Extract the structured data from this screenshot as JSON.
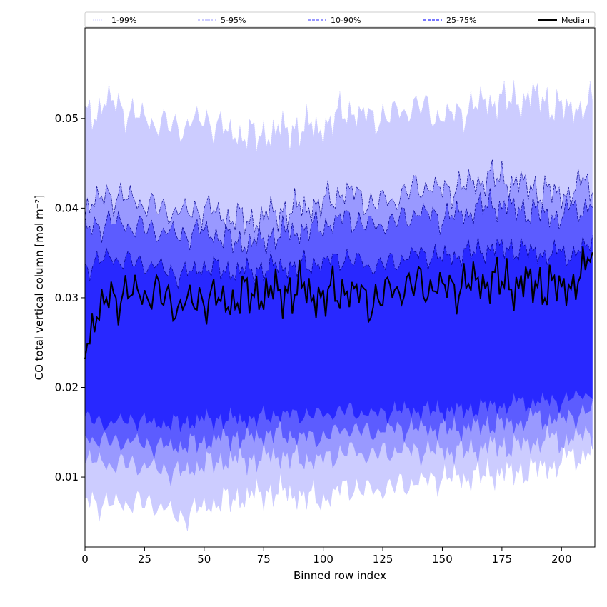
{
  "chart_data": {
    "type": "area",
    "title": "",
    "xlabel": "Binned row index",
    "ylabel": "CO total vertical column [mol m⁻²]",
    "xlim": [
      0,
      214
    ],
    "ylim": [
      0.0022,
      0.0601
    ],
    "x_ticks": [
      0,
      25,
      50,
      75,
      100,
      125,
      150,
      175,
      200
    ],
    "x_tick_labels": [
      "0",
      "25",
      "50",
      "75",
      "100",
      "125",
      "150",
      "175",
      "200"
    ],
    "y_ticks": [
      0.01,
      0.02,
      0.03,
      0.04,
      0.05
    ],
    "y_tick_labels": [
      "0.01",
      "0.02",
      "0.03",
      "0.04",
      "0.05"
    ],
    "grid": false,
    "legend_position": "top",
    "legend": [
      {
        "label": "1-99%",
        "style": "dotted"
      },
      {
        "label": "5-95%",
        "style": "dashdot"
      },
      {
        "label": "10-90%",
        "style": "dashed"
      },
      {
        "label": "25-75%",
        "style": "dashed"
      },
      {
        "label": "Median",
        "style": "solid"
      }
    ],
    "colors": {
      "band_1_99": "#ccccff",
      "band_5_95": "#9999ff",
      "band_10_90": "#5c5cff",
      "band_25_75": "#2828ff",
      "band_edge": "#00008b",
      "median": "#000000"
    },
    "x": [
      0,
      10,
      20,
      30,
      40,
      50,
      60,
      70,
      80,
      90,
      100,
      110,
      120,
      130,
      140,
      150,
      160,
      170,
      180,
      190,
      200,
      213
    ],
    "series": [
      {
        "name": "1-99%",
        "kind": "band",
        "lower": [
          0.0075,
          0.007,
          0.0072,
          0.007,
          0.0055,
          0.0068,
          0.0075,
          0.008,
          0.0085,
          0.008,
          0.0075,
          0.009,
          0.0085,
          0.009,
          0.0095,
          0.01,
          0.01,
          0.0105,
          0.0105,
          0.011,
          0.0115,
          0.013
        ],
        "upper": [
          0.05,
          0.052,
          0.0505,
          0.0495,
          0.049,
          0.05,
          0.0485,
          0.048,
          0.0485,
          0.049,
          0.049,
          0.051,
          0.05,
          0.0505,
          0.0515,
          0.05,
          0.051,
          0.052,
          0.052,
          0.0525,
          0.051,
          0.0515
        ]
      },
      {
        "name": "5-95%",
        "kind": "band",
        "lower": [
          0.012,
          0.0115,
          0.0115,
          0.011,
          0.0105,
          0.0115,
          0.012,
          0.012,
          0.0125,
          0.012,
          0.012,
          0.013,
          0.0125,
          0.013,
          0.013,
          0.013,
          0.013,
          0.0135,
          0.0135,
          0.014,
          0.014,
          0.015
        ],
        "upper": [
          0.04,
          0.0415,
          0.041,
          0.04,
          0.0395,
          0.04,
          0.039,
          0.0385,
          0.0395,
          0.04,
          0.0405,
          0.042,
          0.0405,
          0.041,
          0.0425,
          0.042,
          0.0425,
          0.0435,
          0.043,
          0.042,
          0.0415,
          0.0425
        ]
      },
      {
        "name": "10-90%",
        "kind": "band",
        "lower": [
          0.0145,
          0.014,
          0.014,
          0.0135,
          0.0135,
          0.014,
          0.0145,
          0.0145,
          0.015,
          0.0145,
          0.0145,
          0.0155,
          0.015,
          0.0155,
          0.0155,
          0.0155,
          0.0155,
          0.016,
          0.016,
          0.0165,
          0.0165,
          0.0175
        ],
        "upper": [
          0.0375,
          0.0385,
          0.038,
          0.0375,
          0.037,
          0.0375,
          0.0365,
          0.036,
          0.037,
          0.0375,
          0.038,
          0.039,
          0.038,
          0.0385,
          0.0395,
          0.039,
          0.0395,
          0.0405,
          0.04,
          0.0395,
          0.039,
          0.0405
        ]
      },
      {
        "name": "25-75%",
        "kind": "band",
        "lower": [
          0.0165,
          0.016,
          0.0165,
          0.016,
          0.016,
          0.0165,
          0.0165,
          0.0165,
          0.017,
          0.017,
          0.017,
          0.0175,
          0.017,
          0.0175,
          0.0175,
          0.0175,
          0.0175,
          0.018,
          0.018,
          0.0185,
          0.0185,
          0.0195
        ],
        "upper": [
          0.0335,
          0.0345,
          0.034,
          0.0335,
          0.0325,
          0.0335,
          0.033,
          0.033,
          0.0335,
          0.0335,
          0.034,
          0.0345,
          0.0335,
          0.034,
          0.035,
          0.0345,
          0.035,
          0.0355,
          0.0355,
          0.035,
          0.0345,
          0.036
        ]
      },
      {
        "name": "Median",
        "kind": "line",
        "values": [
          0.0255,
          0.03,
          0.0305,
          0.0305,
          0.029,
          0.03,
          0.0295,
          0.0305,
          0.0305,
          0.031,
          0.03,
          0.031,
          0.0295,
          0.031,
          0.0315,
          0.031,
          0.0315,
          0.032,
          0.0315,
          0.0315,
          0.031,
          0.033
        ]
      }
    ]
  }
}
